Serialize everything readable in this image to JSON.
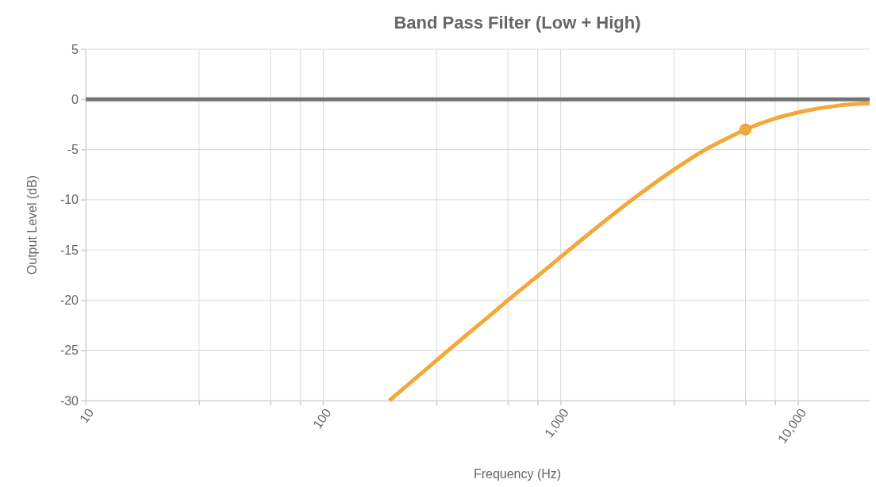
{
  "chart_data": {
    "type": "line",
    "title": "Band Pass Filter (Low + High)",
    "xlabel": "Frequency (Hz)",
    "ylabel": "Output Level (dB)",
    "log": "x",
    "grid": true,
    "marker": "none",
    "xlim": [
      10,
      20000
    ],
    "xticks": [
      10,
      {
        "value": 30,
        "label": null
      },
      {
        "value": 60,
        "label": null
      },
      {
        "value": 80,
        "label": null
      },
      100,
      {
        "value": 300,
        "label": null
      },
      {
        "value": 600,
        "label": null
      },
      {
        "value": 800,
        "label": null
      },
      {
        "value": 1000,
        "label": "1,000"
      },
      {
        "value": 3000,
        "label": null
      },
      {
        "value": 6000,
        "label": null
      },
      {
        "value": 8000,
        "label": null
      },
      {
        "value": 10000,
        "label": "10,000"
      }
    ],
    "ylim": [
      -30,
      5
    ],
    "yticks": [
      5,
      0,
      -5,
      -10,
      -15,
      -20,
      -25,
      -30
    ],
    "series": [
      {
        "color": "#737373",
        "x": [
          10,
          20000
        ],
        "values": [
          0,
          0
        ]
      },
      {
        "color": "#f2a93b",
        "x": [
          190,
          250,
          300,
          400,
          500,
          600,
          800,
          1000,
          1500,
          2000,
          3000,
          4000,
          5000,
          6000,
          8000,
          10000,
          15000,
          20000
        ],
        "values": [
          -30,
          -27.6,
          -26,
          -23.5,
          -21.6,
          -20,
          -17.6,
          -15.7,
          -12.3,
          -10,
          -7,
          -5.1,
          -3.9,
          -3,
          -1.9,
          -1.3,
          -0.6,
          -0.4
        ]
      },
      {
        "type": "scatter",
        "color": "#f2a93b",
        "marker": "circle",
        "x": [
          6000
        ],
        "values": [
          -3
        ]
      }
    ]
  }
}
